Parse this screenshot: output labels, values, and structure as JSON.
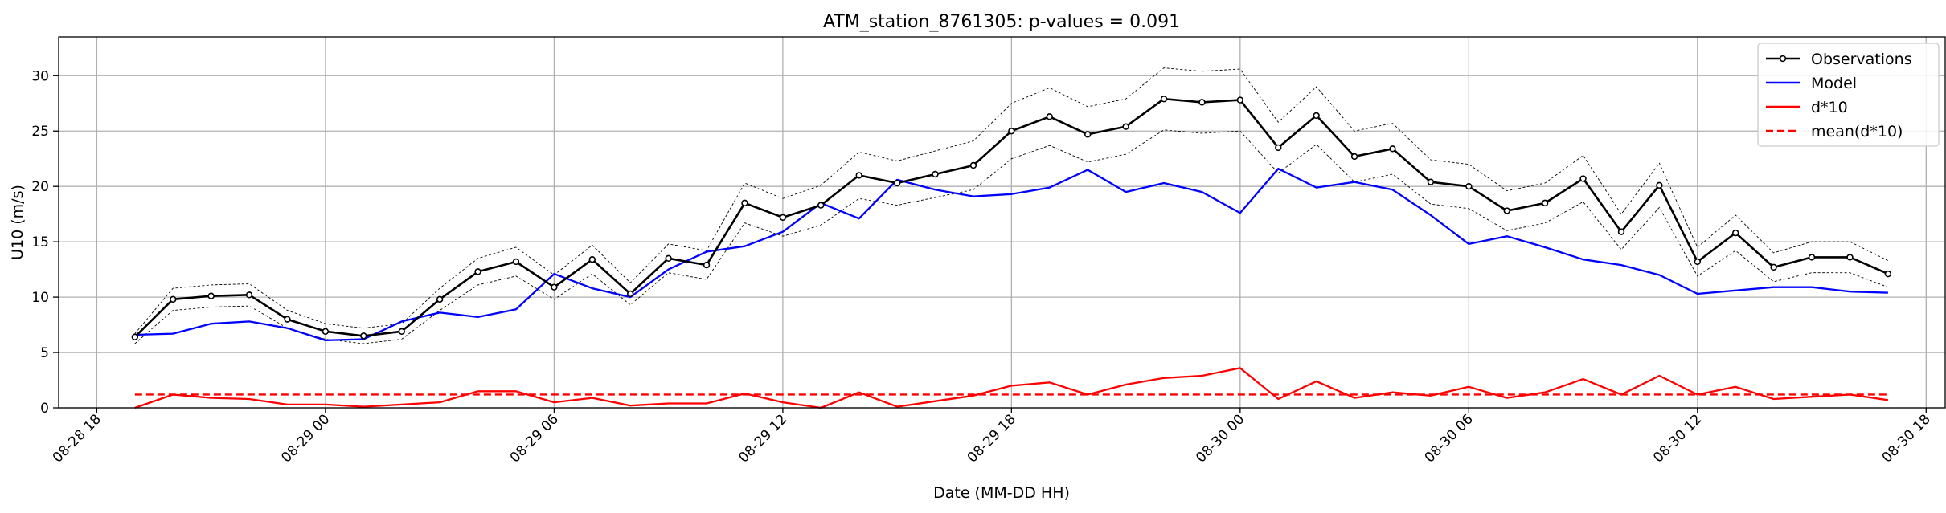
{
  "chart_data": {
    "type": "line",
    "title": "ATM_station_8761305: p-values = 0.091",
    "xlabel": "Date (MM-DD HH)",
    "ylabel": "U10 (m/s)",
    "x_start": "08-28 19",
    "x_step_hours": 1,
    "xlim": [
      "08-28 17:00",
      "08-30 18:30"
    ],
    "ylim": [
      0,
      33.5
    ],
    "xticks": [
      "08-28 18",
      "08-29 00",
      "08-29 06",
      "08-29 12",
      "08-29 18",
      "08-30 00",
      "08-30 06",
      "08-30 12",
      "08-30 18"
    ],
    "yticks": [
      "0",
      "5",
      "10",
      "15",
      "20",
      "25",
      "30"
    ],
    "grid": true,
    "legend_position": "top-right",
    "series": [
      {
        "name": "Observations",
        "color": "#000000",
        "style": "solid-with-circle-markers",
        "values": [
          6.4,
          9.8,
          10.1,
          10.2,
          8.0,
          6.9,
          6.5,
          6.9,
          9.8,
          12.3,
          13.2,
          10.9,
          13.4,
          10.3,
          13.5,
          12.9,
          18.5,
          17.2,
          18.3,
          21.0,
          20.3,
          21.1,
          21.9,
          25.0,
          26.3,
          24.7,
          25.4,
          27.9,
          27.6,
          27.8,
          23.5,
          26.4,
          22.7,
          23.4,
          20.4,
          20.0,
          17.8,
          18.5,
          20.7,
          15.9,
          20.1,
          13.2,
          15.8,
          12.7,
          13.6,
          13.6,
          12.1
        ]
      },
      {
        "name": "Model",
        "color": "#0000ff",
        "style": "solid",
        "values": [
          6.6,
          6.7,
          7.6,
          7.8,
          7.2,
          6.1,
          6.2,
          7.8,
          8.6,
          8.2,
          8.9,
          12.1,
          10.8,
          10.0,
          12.5,
          14.1,
          14.6,
          15.9,
          18.5,
          17.1,
          20.6,
          19.7,
          19.1,
          19.3,
          19.9,
          21.5,
          19.5,
          20.3,
          19.5,
          17.6,
          21.6,
          19.9,
          20.4,
          19.7,
          17.4,
          14.8,
          15.5,
          14.5,
          13.4,
          12.9,
          12.0,
          10.3,
          10.6,
          10.9,
          10.9,
          10.5,
          10.4
        ]
      },
      {
        "name": "d*10",
        "color": "#ff0000",
        "style": "solid",
        "values": [
          0.0,
          1.2,
          0.9,
          0.8,
          0.3,
          0.3,
          0.1,
          0.3,
          0.5,
          1.5,
          1.5,
          0.5,
          0.9,
          0.2,
          0.4,
          0.4,
          1.3,
          0.5,
          0.0,
          1.4,
          0.1,
          0.6,
          1.1,
          2.0,
          2.3,
          1.2,
          2.1,
          2.7,
          2.9,
          3.6,
          0.8,
          2.4,
          0.9,
          1.4,
          1.1,
          1.9,
          0.9,
          1.4,
          2.6,
          1.2,
          2.9,
          1.2,
          1.9,
          0.8,
          1.0,
          1.2,
          0.7
        ]
      },
      {
        "name": "mean(d*10)",
        "color": "#ff0000",
        "style": "dashed",
        "value": 1.2
      }
    ],
    "envelope": {
      "color": "#000000",
      "style": "thin-dashed",
      "upper": [
        6.7,
        10.8,
        11.1,
        11.2,
        8.8,
        7.6,
        7.2,
        7.6,
        10.8,
        13.5,
        14.5,
        12.0,
        14.7,
        11.3,
        14.8,
        14.2,
        20.3,
        18.9,
        20.1,
        23.1,
        22.3,
        23.2,
        24.1,
        27.5,
        28.9,
        27.2,
        27.9,
        30.7,
        30.4,
        30.6,
        25.8,
        29.0,
        25.0,
        25.7,
        22.4,
        22.0,
        19.6,
        20.3,
        22.8,
        17.5,
        22.1,
        14.5,
        17.4,
        14.0,
        15.0,
        15.0,
        13.3
      ],
      "lower": [
        5.8,
        8.8,
        9.1,
        9.2,
        7.2,
        6.2,
        5.8,
        6.2,
        8.8,
        11.1,
        11.9,
        9.8,
        12.1,
        9.3,
        12.2,
        11.6,
        16.7,
        15.5,
        16.5,
        18.9,
        18.3,
        19.0,
        19.7,
        22.5,
        23.7,
        22.2,
        22.9,
        25.1,
        24.8,
        25.0,
        21.2,
        23.8,
        20.4,
        21.1,
        18.4,
        18.0,
        16.0,
        16.7,
        18.6,
        14.3,
        18.1,
        11.9,
        14.2,
        11.4,
        12.2,
        12.2,
        10.9
      ]
    }
  }
}
